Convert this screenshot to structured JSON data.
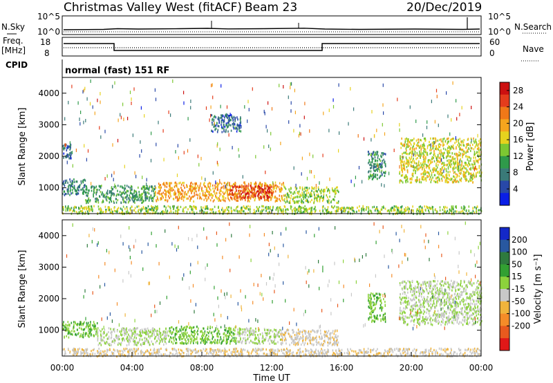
{
  "header": {
    "title": "Christmas Valley West (fitACF)",
    "beam": "Beam 23",
    "date": "20/Dec/2019"
  },
  "status_panels": {
    "nsky_label": "N.Sky",
    "nsearch_label": "N.Search",
    "freq_label": "Freq.",
    "freq_unit": "[MHz]",
    "nave_label": "Nave",
    "cpid_label": "CPID",
    "cpid_text": "normal (fast) 151 RF",
    "noise_ticks": [
      "10^5",
      "10^0"
    ],
    "freq_ticks": [
      "18",
      "8"
    ],
    "nave_ticks": [
      "60",
      "0"
    ]
  },
  "axes": {
    "xlabel": "Time UT",
    "ylabel": "Slant Range [km]",
    "xticks": [
      "00:00",
      "04:00",
      "08:00",
      "12:00",
      "16:00",
      "20:00",
      "00:00"
    ],
    "yticks": [
      "1000",
      "2000",
      "3000",
      "4000"
    ]
  },
  "colorbars": {
    "power": {
      "label": "Power [dB]",
      "ticks": [
        "4",
        "8",
        "12",
        "16",
        "20",
        "24",
        "28"
      ],
      "colors": [
        "#0a1ee6",
        "#2848a8",
        "#3a7a78",
        "#2f9a4a",
        "#7cc832",
        "#e6d21e",
        "#f5a51e",
        "#f07818",
        "#e43c1c",
        "#cc1010"
      ]
    },
    "velocity": {
      "label": "Velocity [m s⁻¹]",
      "ticks": [
        "200",
        "100",
        "50",
        "15",
        "-15",
        "-50",
        "-100",
        "-200"
      ],
      "colors": [
        "#1428c8",
        "#2858a0",
        "#2e7a3e",
        "#32a032",
        "#8cd23c",
        "#c8c8c8",
        "#f0b43c",
        "#f58c28",
        "#e85a1e",
        "#e01818"
      ]
    }
  },
  "chart_data": [
    {
      "type": "heatmap",
      "name": "power",
      "xlim": [
        "00:00",
        "24:00"
      ],
      "ylim": [
        180,
        4500
      ],
      "colorbar_range_db": [
        0,
        30
      ],
      "features": [
        {
          "t": [
            0.0,
            1.3
          ],
          "range_km": [
            800,
            1300
          ],
          "level_db": 8
        },
        {
          "t": [
            0.0,
            0.5
          ],
          "range_km": [
            1950,
            2400
          ],
          "level_db": 6
        },
        {
          "t": [
            1.3,
            5.3
          ],
          "range_km": [
            550,
            1100
          ],
          "level_db": 10
        },
        {
          "t": [
            5.3,
            12.7
          ],
          "range_km": [
            600,
            1200
          ],
          "level_db": 20
        },
        {
          "t": [
            9.5,
            12.0
          ],
          "range_km": [
            700,
            1100
          ],
          "level_db": 26
        },
        {
          "t": [
            12.7,
            15.8
          ],
          "range_km": [
            550,
            1050
          ],
          "level_db": 14
        },
        {
          "t": [
            8.5,
            10.2
          ],
          "range_km": [
            2800,
            3350
          ],
          "level_db": 6
        },
        {
          "t": [
            17.5,
            18.5
          ],
          "range_km": [
            1300,
            2200
          ],
          "level_db": 9
        },
        {
          "t": [
            19.3,
            24.0
          ],
          "range_km": [
            1200,
            2600
          ],
          "level_db": 16
        },
        {
          "t": [
            0.0,
            24.0
          ],
          "range_km": [
            200,
            450
          ],
          "level_db": 14
        }
      ]
    },
    {
      "type": "heatmap",
      "name": "velocity",
      "xlim": [
        "00:00",
        "24:00"
      ],
      "ylim": [
        180,
        4500
      ],
      "colorbar_range_ms": [
        -250,
        250
      ],
      "features": [
        {
          "t": [
            0.0,
            2.0
          ],
          "range_km": [
            800,
            1300
          ],
          "velocity_ms": 40
        },
        {
          "t": [
            2.0,
            6.0
          ],
          "range_km": [
            550,
            1100
          ],
          "velocity_ms": 0
        },
        {
          "t": [
            6.0,
            10.0
          ],
          "range_km": [
            600,
            1150
          ],
          "velocity_ms": 40
        },
        {
          "t": [
            10.0,
            12.5
          ],
          "range_km": [
            600,
            1100
          ],
          "velocity_ms": 0
        },
        {
          "t": [
            12.5,
            15.8
          ],
          "range_km": [
            550,
            1050
          ],
          "velocity_ms": -40
        },
        {
          "t": [
            17.5,
            18.5
          ],
          "range_km": [
            1300,
            2200
          ],
          "velocity_ms": 40
        },
        {
          "t": [
            19.3,
            24.0
          ],
          "range_km": [
            1200,
            2600
          ],
          "velocity_ms": 0
        },
        {
          "t": [
            0.0,
            24.0
          ],
          "range_km": [
            200,
            450
          ],
          "velocity_ms": -40
        }
      ]
    }
  ]
}
